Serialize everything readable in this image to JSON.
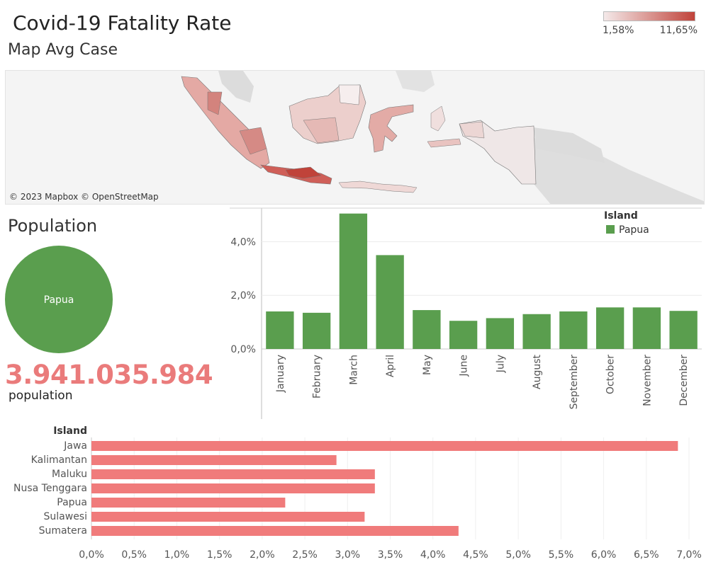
{
  "title": "Covid-19 Fatality Rate",
  "subtitle": "Map Avg Case",
  "color_legend": {
    "min_label": "1,58%",
    "max_label": "11,65%",
    "color_low": "#f4e9e9",
    "color_high": "#c0433a"
  },
  "map": {
    "credit": "© 2023 Mapbox © OpenStreetMap"
  },
  "population": {
    "title": "Population",
    "pie_label": "Papua",
    "value": "3.941.035.984",
    "label": "population",
    "color": "#5a9e4e"
  },
  "chart_data": [
    {
      "type": "bar",
      "orientation": "vertical",
      "categories": [
        "January",
        "February",
        "March",
        "April",
        "May",
        "June",
        "July",
        "August",
        "September",
        "October",
        "November",
        "December"
      ],
      "series": [
        {
          "name": "Papua",
          "values": [
            1.4,
            1.35,
            5.05,
            3.5,
            1.45,
            1.05,
            1.15,
            1.3,
            1.4,
            1.55,
            1.55,
            1.42
          ]
        }
      ],
      "y_ticks": [
        "0,0%",
        "2,0%",
        "4,0%"
      ],
      "ylim": [
        0,
        5.2
      ],
      "legend_title": "Island",
      "legend_position": "top-right",
      "grid": true,
      "color": "#5a9e4e"
    },
    {
      "type": "bar",
      "orientation": "horizontal",
      "axis_title": "Island",
      "categories": [
        "Jawa",
        "Kalimantan",
        "Maluku",
        "Nusa Tenggara",
        "Papua",
        "Sulawesi",
        "Sumatera"
      ],
      "values": [
        6.87,
        2.87,
        3.32,
        3.32,
        2.27,
        3.2,
        4.3
      ],
      "x_ticks": [
        "0,0%",
        "0,5%",
        "1,0%",
        "1,5%",
        "2,0%",
        "2,5%",
        "3,0%",
        "3,5%",
        "4,0%",
        "4,5%",
        "5,0%",
        "5,5%",
        "6,0%",
        "6,5%",
        "7,0%"
      ],
      "xlim": [
        0,
        7.0
      ],
      "grid": true,
      "color": "#f07b7b"
    }
  ]
}
